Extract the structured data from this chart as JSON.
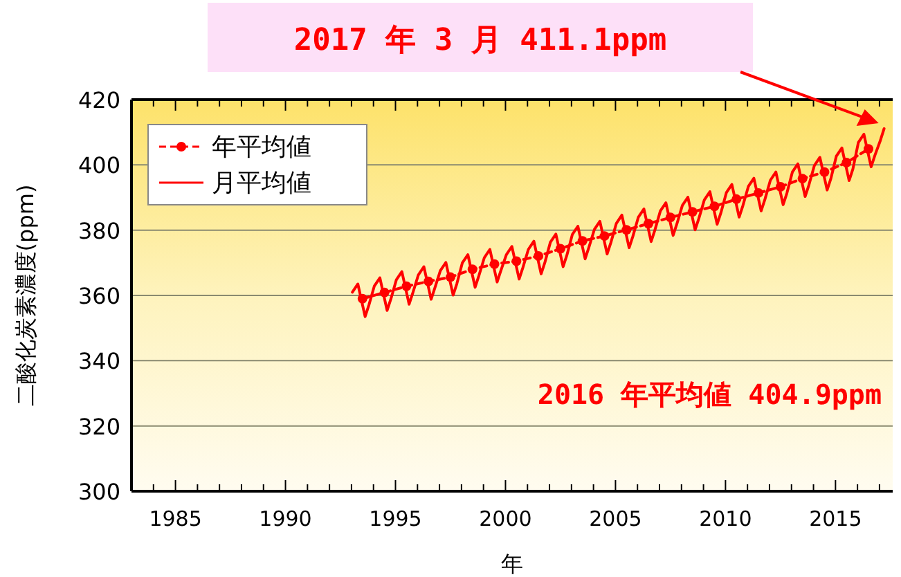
{
  "chart_data": {
    "type": "line",
    "xlabel": "年",
    "ylabel": "二酸化炭素濃度(ppm)",
    "xlim": [
      1983,
      2017.6
    ],
    "ylim": [
      300,
      420
    ],
    "xticks": [
      {
        "value": 1983,
        "label": null
      },
      {
        "value": 1984,
        "label": null
      },
      1985,
      {
        "value": 1986,
        "label": null
      },
      {
        "value": 1987,
        "label": null
      },
      {
        "value": 1988,
        "label": null
      },
      {
        "value": 1989,
        "label": null
      },
      1990,
      {
        "value": 1991,
        "label": null
      },
      {
        "value": 1992,
        "label": null
      },
      {
        "value": 1993,
        "label": null
      },
      {
        "value": 1994,
        "label": null
      },
      1995,
      {
        "value": 1996,
        "label": null
      },
      {
        "value": 1997,
        "label": null
      },
      {
        "value": 1998,
        "label": null
      },
      {
        "value": 1999,
        "label": null
      },
      2000,
      {
        "value": 2001,
        "label": null
      },
      {
        "value": 2002,
        "label": null
      },
      {
        "value": 2003,
        "label": null
      },
      {
        "value": 2004,
        "label": null
      },
      2005,
      {
        "value": 2006,
        "label": null
      },
      {
        "value": 2007,
        "label": null
      },
      {
        "value": 2008,
        "label": null
      },
      {
        "value": 2009,
        "label": null
      },
      2010,
      {
        "value": 2011,
        "label": null
      },
      {
        "value": 2012,
        "label": null
      },
      {
        "value": 2013,
        "label": null
      },
      {
        "value": 2014,
        "label": null
      },
      2015,
      {
        "value": 2016,
        "label": null
      },
      {
        "value": 2017,
        "label": null
      }
    ],
    "yticks": [
      300,
      320,
      340,
      360,
      380,
      400,
      420
    ],
    "grid": "y",
    "legend": "top left",
    "series": [
      {
        "name": "年平均値",
        "color": "#ff0000",
        "line_style": "dashed",
        "marker": "circle",
        "x": [
          1993.5,
          1994.5,
          1995.5,
          1996.5,
          1997.5,
          1998.5,
          1999.5,
          2000.5,
          2001.5,
          2002.5,
          2003.5,
          2004.5,
          2005.5,
          2006.5,
          2007.5,
          2008.5,
          2009.5,
          2010.5,
          2011.5,
          2012.5,
          2013.5,
          2014.5,
          2015.5,
          2016.5
        ],
        "values": [
          359.0,
          360.9,
          362.8,
          364.3,
          365.6,
          368.0,
          369.6,
          370.5,
          372.1,
          374.3,
          376.7,
          378.2,
          380.1,
          382.0,
          383.9,
          385.6,
          387.3,
          389.5,
          391.4,
          393.3,
          395.8,
          397.8,
          400.7,
          404.9
        ]
      },
      {
        "name": "月平均値",
        "color": "#ff0000",
        "line_style": "solid",
        "marker": "none",
        "x": [
          1993.04,
          1993.29,
          1993.62,
          1993.79,
          1994.04,
          1994.29,
          1994.62,
          1994.79,
          1995.04,
          1995.29,
          1995.62,
          1995.79,
          1996.04,
          1996.29,
          1996.62,
          1996.79,
          1997.04,
          1997.29,
          1997.62,
          1997.79,
          1998.04,
          1998.29,
          1998.62,
          1998.79,
          1999.04,
          1999.29,
          1999.62,
          1999.79,
          2000.04,
          2000.29,
          2000.62,
          2000.79,
          2001.04,
          2001.29,
          2001.62,
          2001.79,
          2002.04,
          2002.29,
          2002.62,
          2002.79,
          2003.04,
          2003.29,
          2003.62,
          2003.79,
          2004.04,
          2004.29,
          2004.62,
          2004.79,
          2005.04,
          2005.29,
          2005.62,
          2005.79,
          2006.04,
          2006.29,
          2006.62,
          2006.79,
          2007.04,
          2007.29,
          2007.62,
          2007.79,
          2008.04,
          2008.29,
          2008.62,
          2008.79,
          2009.04,
          2009.29,
          2009.62,
          2009.79,
          2010.04,
          2010.29,
          2010.62,
          2010.79,
          2011.04,
          2011.29,
          2011.62,
          2011.79,
          2012.04,
          2012.29,
          2012.62,
          2012.79,
          2013.04,
          2013.29,
          2013.62,
          2013.79,
          2014.04,
          2014.29,
          2014.62,
          2014.79,
          2015.04,
          2015.29,
          2015.62,
          2015.79,
          2016.04,
          2016.29,
          2016.62,
          2016.79,
          2017.04,
          2017.21
        ],
        "values": [
          361.0,
          363.5,
          353.5,
          357.0,
          362.9,
          365.4,
          355.4,
          358.9,
          364.8,
          367.3,
          357.3,
          360.8,
          366.3,
          368.8,
          358.8,
          362.3,
          367.6,
          370.1,
          360.1,
          363.6,
          370.0,
          372.5,
          362.5,
          366.0,
          371.6,
          374.1,
          364.1,
          367.6,
          372.5,
          375.0,
          365.0,
          368.5,
          374.1,
          376.6,
          366.6,
          370.1,
          376.3,
          378.8,
          368.8,
          372.3,
          378.7,
          381.2,
          371.2,
          374.7,
          380.2,
          382.7,
          372.7,
          376.2,
          382.1,
          384.6,
          374.6,
          378.1,
          384.0,
          386.5,
          376.5,
          380.0,
          385.9,
          388.4,
          378.4,
          381.9,
          387.6,
          390.1,
          380.1,
          383.6,
          389.3,
          391.8,
          381.8,
          385.3,
          391.5,
          394.0,
          384.0,
          387.5,
          393.4,
          395.9,
          385.9,
          389.4,
          395.3,
          397.8,
          387.8,
          391.3,
          397.8,
          400.3,
          390.3,
          393.8,
          399.8,
          402.3,
          392.3,
          395.8,
          402.7,
          405.2,
          395.2,
          398.7,
          406.9,
          409.4,
          399.4,
          402.9,
          407.5,
          411.1
        ]
      }
    ],
    "annotations": [
      "2017 年 3 月  411.1ppm",
      "2016 年平均値 404.9ppm"
    ]
  }
}
